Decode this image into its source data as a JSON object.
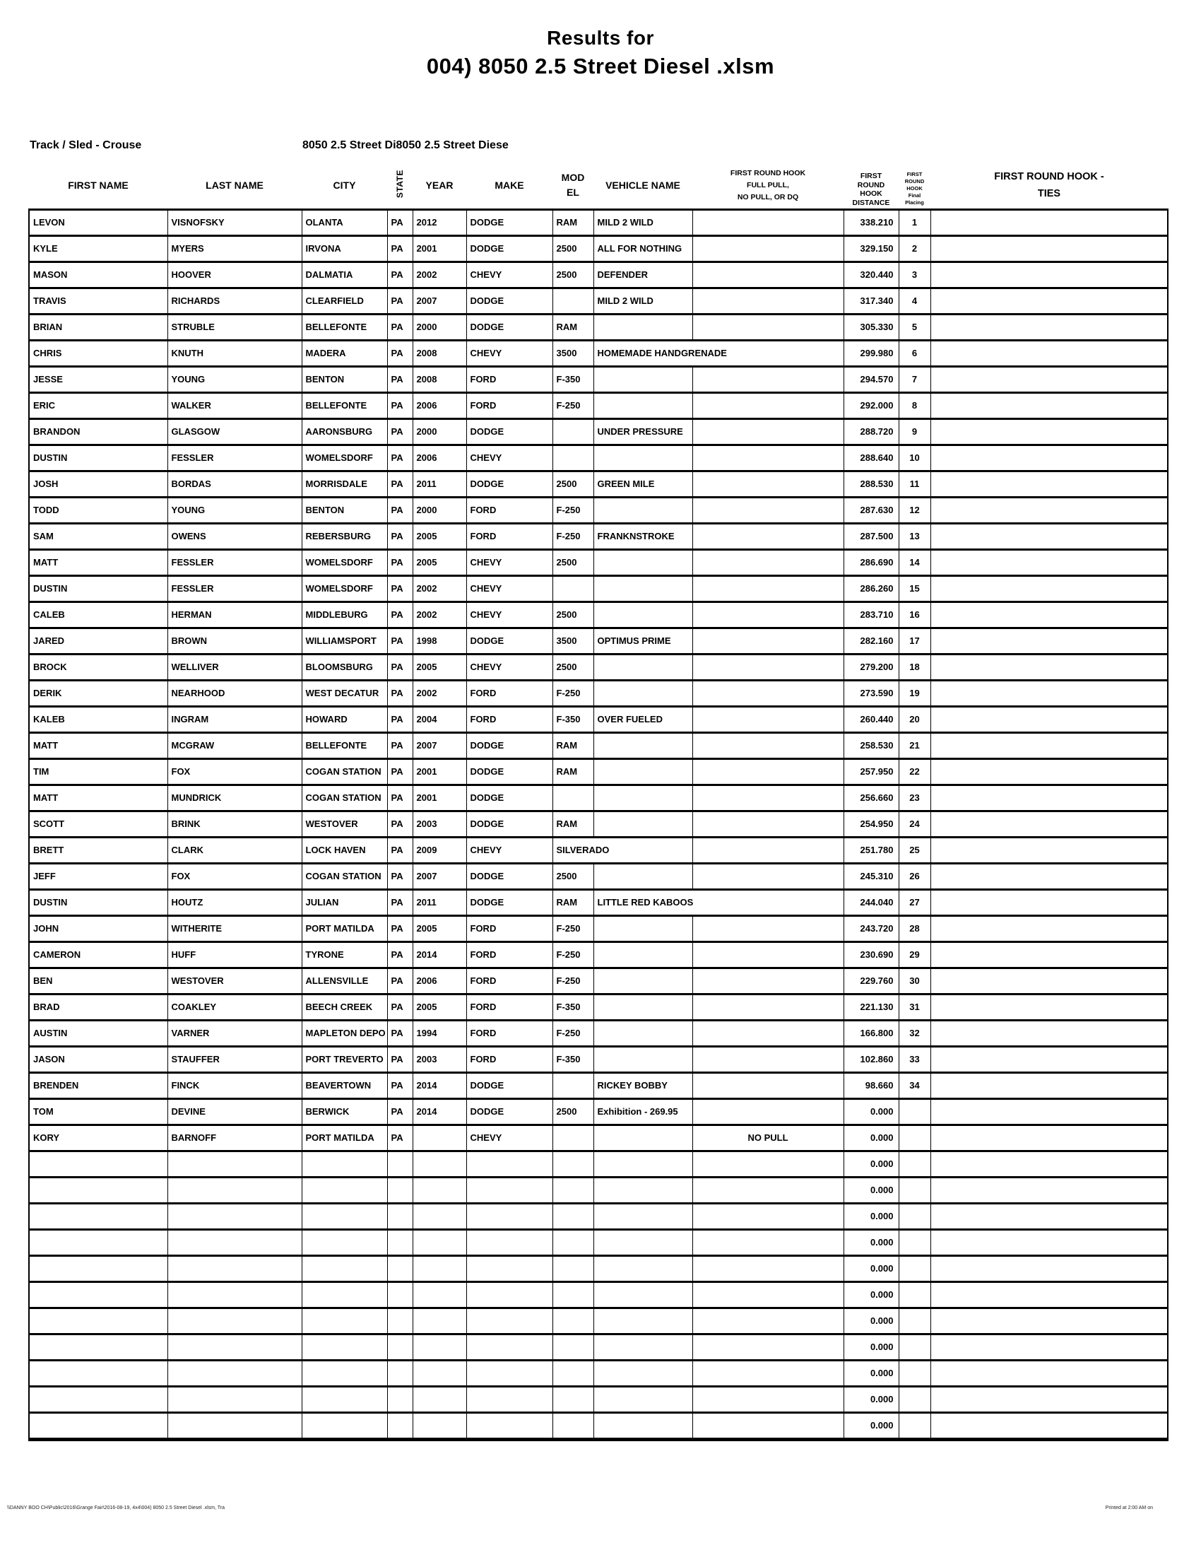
{
  "title": {
    "line1": "Results for",
    "line2": "004) 8050 2.5 Street Diesel .xlsm"
  },
  "meta": {
    "track_sled": "Track / Sled - Crouse",
    "class_left": "8050 2.5 Street Di",
    "class_right": "8050 2.5 Street Diese"
  },
  "headers": {
    "first_name": "FIRST NAME",
    "last_name": "LAST NAME",
    "city": "CITY",
    "state": "STATE",
    "year": "YEAR",
    "make": "MAKE",
    "model": "MOD\nEL",
    "vehicle_name": "VEHICLE NAME",
    "first_round_pull": "FIRST ROUND HOOK\nFULL PULL,\nNO PULL, OR DQ",
    "first_round_distance": "FIRST\nROUND\nHOOK\nDISTANCE",
    "first_round_placing": "FIRST\nROUND\nHOOK\nFinal\nPlacing",
    "first_round_ties": "FIRST ROUND HOOK -\nTIES"
  },
  "rows": [
    {
      "first": "LEVON",
      "last": "VISNOFSKY",
      "city": "OLANTA",
      "state": "PA",
      "year": "2012",
      "make": "DODGE",
      "model": "RAM",
      "vehicle": "MILD 2 WILD",
      "pull": "",
      "distance": "338.210",
      "place": "1"
    },
    {
      "first": "KYLE",
      "last": "MYERS",
      "city": "IRVONA",
      "state": "PA",
      "year": "2001",
      "make": "DODGE",
      "model": "2500",
      "vehicle": "ALL FOR NOTHING",
      "pull": "",
      "distance": "329.150",
      "place": "2"
    },
    {
      "first": "MASON",
      "last": "HOOVER",
      "city": "DALMATIA",
      "state": "PA",
      "year": "2002",
      "make": "CHEVY",
      "model": "2500",
      "vehicle": "DEFENDER",
      "pull": "",
      "distance": "320.440",
      "place": "3"
    },
    {
      "first": "TRAVIS",
      "last": "RICHARDS",
      "city": "CLEARFIELD",
      "state": "PA",
      "year": "2007",
      "make": "DODGE",
      "model": "",
      "vehicle": "MILD 2 WILD",
      "pull": "",
      "distance": "317.340",
      "place": "4"
    },
    {
      "first": "BRIAN",
      "last": "STRUBLE",
      "city": "BELLEFONTE",
      "state": "PA",
      "year": "2000",
      "make": "DODGE",
      "model": "RAM",
      "vehicle": "",
      "pull": "",
      "distance": "305.330",
      "place": "5"
    },
    {
      "first": "CHRIS",
      "last": "KNUTH",
      "city": "MADERA",
      "state": "PA",
      "year": "2008",
      "make": "CHEVY",
      "model": "3500",
      "vehicle": "HOMEMADE HANDGRENADE",
      "pull": "",
      "distance": "299.980",
      "place": "6",
      "span": "vehicle"
    },
    {
      "first": "JESSE",
      "last": "YOUNG",
      "city": "BENTON",
      "state": "PA",
      "year": "2008",
      "make": "FORD",
      "model": "F-350",
      "vehicle": "",
      "pull": "",
      "distance": "294.570",
      "place": "7"
    },
    {
      "first": "ERIC",
      "last": "WALKER",
      "city": "BELLEFONTE",
      "state": "PA",
      "year": "2006",
      "make": "FORD",
      "model": "F-250",
      "vehicle": "",
      "pull": "",
      "distance": "292.000",
      "place": "8"
    },
    {
      "first": "BRANDON",
      "last": "GLASGOW",
      "city": "AARONSBURG",
      "state": "PA",
      "year": "2000",
      "make": "DODGE",
      "model": "",
      "vehicle": "UNDER PRESSURE",
      "pull": "",
      "distance": "288.720",
      "place": "9"
    },
    {
      "first": "DUSTIN",
      "last": "FESSLER",
      "city": "WOMELSDORF",
      "state": "PA",
      "year": "2006",
      "make": "CHEVY",
      "model": "",
      "vehicle": "",
      "pull": "",
      "distance": "288.640",
      "place": "10"
    },
    {
      "first": "JOSH",
      "last": "BORDAS",
      "city": "MORRISDALE",
      "state": "PA",
      "year": "2011",
      "make": "DODGE",
      "model": "2500",
      "vehicle": "GREEN MILE",
      "pull": "",
      "distance": "288.530",
      "place": "11"
    },
    {
      "first": "TODD",
      "last": "YOUNG",
      "city": "BENTON",
      "state": "PA",
      "year": "2000",
      "make": "FORD",
      "model": "F-250",
      "vehicle": "",
      "pull": "",
      "distance": "287.630",
      "place": "12"
    },
    {
      "first": "SAM",
      "last": "OWENS",
      "city": "REBERSBURG",
      "state": "PA",
      "year": "2005",
      "make": "FORD",
      "model": "F-250",
      "vehicle": "FRANKNSTROKE",
      "pull": "",
      "distance": "287.500",
      "place": "13"
    },
    {
      "first": "MATT",
      "last": "FESSLER",
      "city": "WOMELSDORF",
      "state": "PA",
      "year": "2005",
      "make": "CHEVY",
      "model": "2500",
      "vehicle": "",
      "pull": "",
      "distance": "286.690",
      "place": "14"
    },
    {
      "first": "DUSTIN",
      "last": "FESSLER",
      "city": "WOMELSDORF",
      "state": "PA",
      "year": "2002",
      "make": "CHEVY",
      "model": "",
      "vehicle": "",
      "pull": "",
      "distance": "286.260",
      "place": "15"
    },
    {
      "first": "CALEB",
      "last": "HERMAN",
      "city": "MIDDLEBURG",
      "state": "PA",
      "year": "2002",
      "make": "CHEVY",
      "model": "2500",
      "vehicle": "",
      "pull": "",
      "distance": "283.710",
      "place": "16"
    },
    {
      "first": "JARED",
      "last": "BROWN",
      "city": "WILLIAMSPORT",
      "state": "PA",
      "year": "1998",
      "make": "DODGE",
      "model": "3500",
      "vehicle": "OPTIMUS PRIME",
      "pull": "",
      "distance": "282.160",
      "place": "17"
    },
    {
      "first": "BROCK",
      "last": "WELLIVER",
      "city": "BLOOMSBURG",
      "state": "PA",
      "year": "2005",
      "make": "CHEVY",
      "model": "2500",
      "vehicle": "",
      "pull": "",
      "distance": "279.200",
      "place": "18"
    },
    {
      "first": "DERIK",
      "last": "NEARHOOD",
      "city": "WEST DECATUR",
      "state": "PA",
      "year": "2002",
      "make": "FORD",
      "model": "F-250",
      "vehicle": "",
      "pull": "",
      "distance": "273.590",
      "place": "19"
    },
    {
      "first": "KALEB",
      "last": "INGRAM",
      "city": "HOWARD",
      "state": "PA",
      "year": "2004",
      "make": "FORD",
      "model": "F-350",
      "vehicle": "OVER FUELED",
      "pull": "",
      "distance": "260.440",
      "place": "20"
    },
    {
      "first": "MATT",
      "last": "MCGRAW",
      "city": "BELLEFONTE",
      "state": "PA",
      "year": "2007",
      "make": "DODGE",
      "model": "RAM",
      "vehicle": "",
      "pull": "",
      "distance": "258.530",
      "place": "21"
    },
    {
      "first": "TIM",
      "last": "FOX",
      "city": "COGAN STATION",
      "state": "PA",
      "year": "2001",
      "make": "DODGE",
      "model": "RAM",
      "vehicle": "",
      "pull": "",
      "distance": "257.950",
      "place": "22"
    },
    {
      "first": "MATT",
      "last": "MUNDRICK",
      "city": "COGAN STATION",
      "state": "PA",
      "year": "2001",
      "make": "DODGE",
      "model": "",
      "vehicle": "",
      "pull": "",
      "distance": "256.660",
      "place": "23"
    },
    {
      "first": "SCOTT",
      "last": "BRINK",
      "city": "WESTOVER",
      "state": "PA",
      "year": "2003",
      "make": "DODGE",
      "model": "RAM",
      "vehicle": "",
      "pull": "",
      "distance": "254.950",
      "place": "24"
    },
    {
      "first": "BRETT",
      "last": "CLARK",
      "city": "LOCK HAVEN",
      "state": "PA",
      "year": "2009",
      "make": "CHEVY",
      "model": "SILVERADO",
      "vehicle": "",
      "pull": "",
      "distance": "251.780",
      "place": "25",
      "span": "model"
    },
    {
      "first": "JEFF",
      "last": "FOX",
      "city": "COGAN STATION",
      "state": "PA",
      "year": "2007",
      "make": "DODGE",
      "model": "2500",
      "vehicle": "",
      "pull": "",
      "distance": "245.310",
      "place": "26"
    },
    {
      "first": "DUSTIN",
      "last": "HOUTZ",
      "city": "JULIAN",
      "state": "PA",
      "year": "2011",
      "make": "DODGE",
      "model": "RAM",
      "vehicle": "LITTLE RED KABOOS",
      "pull": "",
      "distance": "244.040",
      "place": "27",
      "span": "vehicle"
    },
    {
      "first": "JOHN",
      "last": "WITHERITE",
      "city": "PORT MATILDA",
      "state": "PA",
      "year": "2005",
      "make": "FORD",
      "model": "F-250",
      "vehicle": "",
      "pull": "",
      "distance": "243.720",
      "place": "28"
    },
    {
      "first": "CAMERON",
      "last": "HUFF",
      "city": "TYRONE",
      "state": "PA",
      "year": "2014",
      "make": "FORD",
      "model": "F-250",
      "vehicle": "",
      "pull": "",
      "distance": "230.690",
      "place": "29"
    },
    {
      "first": "BEN",
      "last": "WESTOVER",
      "city": "ALLENSVILLE",
      "state": "PA",
      "year": "2006",
      "make": "FORD",
      "model": "F-250",
      "vehicle": "",
      "pull": "",
      "distance": "229.760",
      "place": "30"
    },
    {
      "first": "BRAD",
      "last": "COAKLEY",
      "city": "BEECH CREEK",
      "state": "PA",
      "year": "2005",
      "make": "FORD",
      "model": "F-350",
      "vehicle": "",
      "pull": "",
      "distance": "221.130",
      "place": "31"
    },
    {
      "first": "AUSTIN",
      "last": "VARNER",
      "city": "MAPLETON DEPO",
      "state": "PA",
      "year": "1994",
      "make": "FORD",
      "model": "F-250",
      "vehicle": "",
      "pull": "",
      "distance": "166.800",
      "place": "32"
    },
    {
      "first": "JASON",
      "last": "STAUFFER",
      "city": "PORT TREVERTO",
      "state": "PA",
      "year": "2003",
      "make": "FORD",
      "model": "F-350",
      "vehicle": "",
      "pull": "",
      "distance": "102.860",
      "place": "33"
    },
    {
      "first": "BRENDEN",
      "last": "FINCK",
      "city": "BEAVERTOWN",
      "state": "PA",
      "year": "2014",
      "make": "DODGE",
      "model": "",
      "vehicle": "RICKEY BOBBY",
      "pull": "",
      "distance": "98.660",
      "place": "34"
    },
    {
      "first": "TOM",
      "last": "DEVINE",
      "city": "BERWICK",
      "state": "PA",
      "year": "2014",
      "make": "DODGE",
      "model": "2500",
      "vehicle": "Exhibition - 269.95",
      "pull": "",
      "distance": "0.000",
      "place": ""
    },
    {
      "first": "KORY",
      "last": "BARNOFF",
      "city": "PORT MATILDA",
      "state": "PA",
      "year": "",
      "make": "CHEVY",
      "model": "",
      "vehicle": "",
      "pull": "NO PULL",
      "distance": "0.000",
      "place": ""
    }
  ],
  "empty_rows": 11,
  "empty_row_distance": "0.000",
  "footer": {
    "left": "\\\\DANNY BOO CH\\Public\\2016\\Grange Fair\\2016-08-19, 4x4\\004) 8050 2.5 Street Diesel .xlsm, Tra",
    "right": "Printed at 2:00 AM on"
  }
}
